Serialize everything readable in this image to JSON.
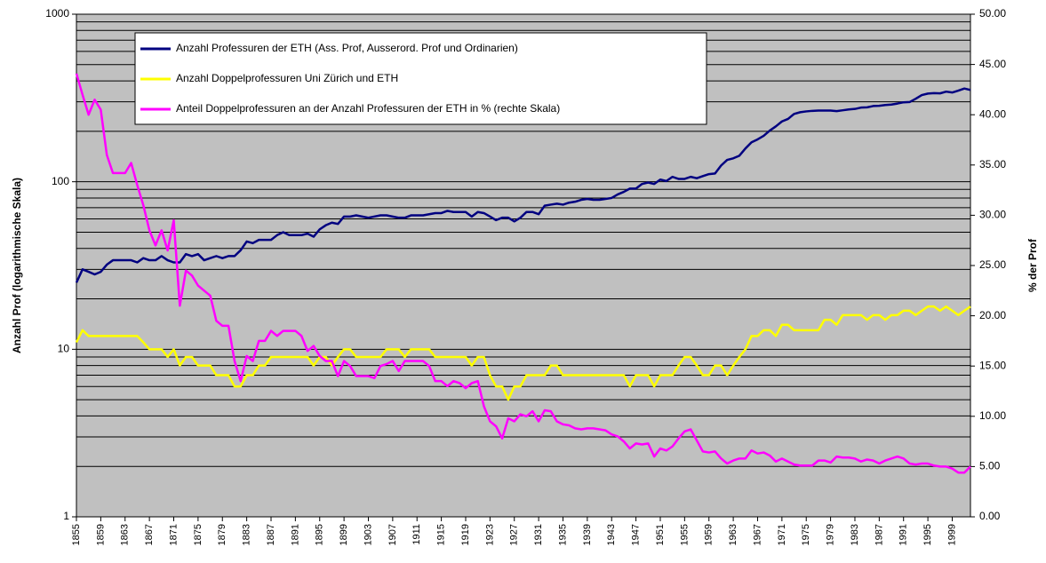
{
  "chart_data": {
    "type": "line",
    "y_label": "Anzahl Prof (logarithmische Skala)",
    "y2_label": "% der Prof",
    "ylog": true,
    "ylim": [
      1,
      1000
    ],
    "yticks": [
      1,
      10,
      100,
      1000
    ],
    "y2lim": [
      0,
      50
    ],
    "y2ticks": [
      {
        "value": 0,
        "label": "0.00"
      },
      {
        "value": 5,
        "label": "5.00"
      },
      {
        "value": 10,
        "label": "10.00"
      },
      {
        "value": 15,
        "label": "15.00"
      },
      {
        "value": 20,
        "label": "20.00"
      },
      {
        "value": 25,
        "label": "25.00"
      },
      {
        "value": 30,
        "label": "30.00"
      },
      {
        "value": 35,
        "label": "35.00"
      },
      {
        "value": 40,
        "label": "40.00"
      },
      {
        "value": 45,
        "label": "45.00"
      },
      {
        "value": 50,
        "label": "50.00"
      }
    ],
    "grid": true,
    "minor_grid": true,
    "background": "#c0c0c0",
    "legend": "top-left",
    "categories": [
      "1855",
      null,
      null,
      null,
      "1859",
      null,
      null,
      null,
      "1863",
      null,
      null,
      null,
      "1867",
      null,
      null,
      null,
      "1871",
      null,
      null,
      null,
      "1875",
      null,
      null,
      null,
      "1879",
      null,
      null,
      null,
      "1883",
      null,
      null,
      null,
      "1887",
      null,
      null,
      null,
      "1891",
      null,
      null,
      null,
      "1895",
      null,
      null,
      null,
      "1899",
      null,
      null,
      null,
      "1903",
      null,
      null,
      null,
      "1907",
      null,
      null,
      null,
      "1911",
      null,
      null,
      null,
      "1915",
      null,
      null,
      null,
      "1919",
      null,
      null,
      null,
      "1923",
      null,
      null,
      null,
      "1927",
      null,
      null,
      null,
      "1931",
      null,
      null,
      null,
      "1935",
      null,
      null,
      null,
      "1939",
      null,
      null,
      null,
      "1943",
      null,
      null,
      null,
      "1947",
      null,
      null,
      null,
      "1951",
      null,
      null,
      null,
      "1955",
      null,
      null,
      null,
      "1959",
      null,
      null,
      null,
      "1963",
      null,
      null,
      null,
      "1967",
      null,
      null,
      null,
      "1971",
      null,
      null,
      null,
      "1975",
      null,
      null,
      null,
      "1979",
      null,
      null,
      null,
      "1983",
      null,
      null,
      null,
      "1987",
      null,
      null,
      null,
      "1991",
      null,
      null,
      null,
      "1995",
      null,
      null,
      null,
      "1999",
      null,
      null,
      null
    ],
    "series": [
      {
        "name": "Anzahl Professuren der ETH (Ass. Prof, Ausserord. Prof und Ordinarien)",
        "color": "#000080",
        "axis": "y",
        "values": [
          25,
          30,
          29,
          28,
          29,
          32,
          34,
          34,
          34,
          34,
          33,
          35,
          34,
          34,
          36,
          34,
          33,
          33,
          37,
          36,
          37,
          34,
          35,
          36,
          35,
          36,
          36,
          39,
          44,
          43,
          45,
          45,
          45,
          48,
          50,
          48,
          48,
          48,
          49,
          47,
          52,
          55,
          57,
          56,
          62,
          62,
          63,
          62,
          61,
          62,
          63,
          63,
          62,
          61,
          61,
          63,
          63,
          63,
          64,
          65,
          65,
          67,
          66,
          66,
          66,
          62,
          66,
          65,
          62,
          59,
          61,
          61,
          58,
          61,
          66,
          66,
          64,
          72,
          73,
          74,
          73,
          75,
          76,
          78,
          79,
          78,
          78,
          79,
          80,
          84,
          87,
          91,
          91,
          97,
          99,
          97,
          103,
          101,
          107,
          104,
          104,
          107,
          105,
          108,
          111,
          112,
          125,
          135,
          138,
          143,
          158,
          172,
          179,
          188,
          202,
          214,
          229,
          237,
          254,
          260,
          263,
          265,
          266,
          266,
          266,
          264,
          267,
          270,
          272,
          277,
          278,
          283,
          284,
          287,
          289,
          293,
          298,
          299,
          313,
          329,
          336,
          338,
          337,
          345,
          341,
          350,
          360,
          353
        ]
      },
      {
        "name": "Anzahl Doppelprofessuren Uni Zürich und ETH",
        "color": "#ffff00",
        "axis": "y",
        "values": [
          11,
          13,
          12,
          12,
          12,
          12,
          12,
          12,
          12,
          12,
          12,
          11,
          10,
          10,
          10,
          9,
          10,
          8,
          9,
          9,
          8,
          8,
          8,
          7,
          7,
          7,
          6,
          6,
          7,
          7,
          8,
          8,
          9,
          9,
          9,
          9,
          9,
          9,
          9,
          8,
          9,
          9,
          8,
          9,
          10,
          10,
          9,
          9,
          9,
          9,
          9,
          10,
          10,
          10,
          9,
          10,
          10,
          10,
          10,
          9,
          9,
          9,
          9,
          9,
          9,
          8,
          9,
          9,
          7,
          6,
          6,
          5,
          6,
          6,
          7,
          7,
          7,
          7,
          8,
          8,
          7,
          7,
          7,
          7,
          7,
          7,
          7,
          7,
          7,
          7,
          7,
          6,
          7,
          7,
          7,
          6,
          7,
          7,
          7,
          8,
          9,
          9,
          8,
          7,
          7,
          8,
          8,
          7,
          8,
          9,
          10,
          12,
          12,
          13,
          13,
          12,
          14,
          14,
          13,
          13,
          13,
          13,
          13,
          15,
          15,
          14,
          16,
          16,
          16,
          16,
          15,
          16,
          16,
          15,
          16,
          16,
          17,
          17,
          16,
          17,
          18,
          18,
          17,
          18,
          17,
          16,
          17,
          18
        ]
      },
      {
        "name": "Anteil Doppelprofessuren an der Anzahl Professuren der ETH in % (rechte Skala)",
        "color": "#ff00ff",
        "axis": "y2",
        "values": [
          44.1,
          42,
          40,
          41.5,
          40.5,
          36,
          34.2,
          34.2,
          34.2,
          35.2,
          33,
          31,
          28.5,
          27,
          28.5,
          26.5,
          29.5,
          21,
          24.5,
          24,
          23,
          22.5,
          22,
          19.5,
          19,
          19,
          15.5,
          13.5,
          16,
          15.5,
          17.5,
          17.5,
          18.5,
          18,
          18.5,
          18.5,
          18.5,
          18,
          16.5,
          17,
          16,
          15.5,
          15.5,
          14,
          15.5,
          15,
          14,
          14,
          14,
          13.8,
          15,
          15.2,
          15.5,
          14.5,
          15.5,
          15.5,
          15.5,
          15.5,
          15,
          13.5,
          13.5,
          13,
          13.5,
          13.3,
          12.8,
          13.3,
          13.5,
          11,
          9.5,
          9,
          7.8,
          9.8,
          9.5,
          10.2,
          10,
          10.5,
          9.5,
          10.6,
          10.5,
          9.5,
          9.2,
          9.1,
          8.8,
          8.7,
          8.8,
          8.8,
          8.7,
          8.6,
          8.2,
          8,
          7.5,
          6.8,
          7.3,
          7.2,
          7.3,
          6,
          6.8,
          6.6,
          7,
          7.8,
          8.5,
          8.7,
          7.6,
          6.5,
          6.4,
          6.5,
          5.8,
          5.3,
          5.6,
          5.8,
          5.8,
          6.6,
          6.3,
          6.4,
          6.1,
          5.5,
          5.8,
          5.5,
          5.2,
          5.1,
          5.1,
          5.1,
          5.6,
          5.6,
          5.4,
          6,
          5.9,
          5.9,
          5.8,
          5.5,
          5.7,
          5.6,
          5.3,
          5.6,
          5.8,
          6,
          5.8,
          5.3,
          5.2,
          5.3,
          5.3,
          5.1,
          5,
          5,
          4.8,
          4.4,
          4.4,
          5
        ]
      }
    ]
  }
}
